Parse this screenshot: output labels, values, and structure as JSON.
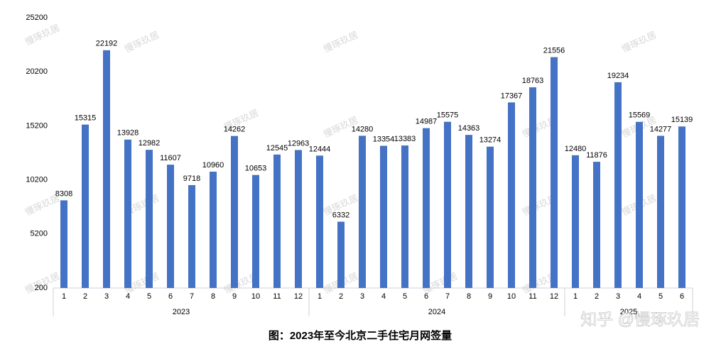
{
  "chart_data": {
    "type": "bar",
    "title": "图：2023年至今北京二手住宅月网签量",
    "watermark": "慢琢玖居",
    "source_mark": "知乎 @慢琢玖居",
    "color": "#4472c4",
    "ylim": [
      200,
      25200
    ],
    "yticks": [
      200,
      5200,
      10200,
      15200,
      20200,
      25200
    ],
    "grid": false,
    "groups": [
      {
        "name": "2023",
        "categories": [
          "1",
          "2",
          "3",
          "4",
          "5",
          "6",
          "7",
          "8",
          "9",
          "10",
          "11",
          "12"
        ],
        "values": [
          8308,
          15315,
          22192,
          13928,
          12982,
          11607,
          9718,
          10960,
          14262,
          10653,
          12545,
          12963
        ]
      },
      {
        "name": "2024",
        "categories": [
          "1",
          "2",
          "3",
          "4",
          "5",
          "6",
          "7",
          "8",
          "9",
          "10",
          "11",
          "12"
        ],
        "values": [
          12444,
          6332,
          14280,
          13354,
          13383,
          14987,
          15575,
          14363,
          13274,
          17367,
          18763,
          21556
        ]
      },
      {
        "name": "2025",
        "categories": [
          "1",
          "2",
          "3",
          "4",
          "5",
          "6"
        ],
        "values": [
          12480,
          11876,
          19234,
          15569,
          14277,
          15139
        ]
      }
    ]
  }
}
